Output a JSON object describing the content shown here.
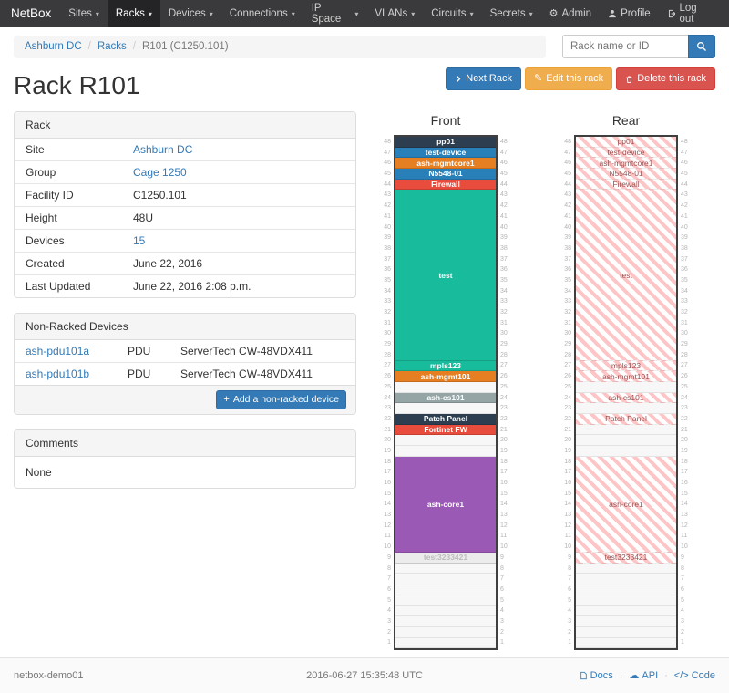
{
  "navbar": {
    "brand": "NetBox",
    "items": [
      {
        "label": "Sites",
        "active": false
      },
      {
        "label": "Racks",
        "active": true
      },
      {
        "label": "Devices",
        "active": false
      },
      {
        "label": "Connections",
        "active": false
      },
      {
        "label": "IP Space",
        "active": false
      },
      {
        "label": "VLANs",
        "active": false
      },
      {
        "label": "Circuits",
        "active": false
      },
      {
        "label": "Secrets",
        "active": false
      }
    ],
    "right": [
      {
        "label": "Admin",
        "icon": "gear-icon"
      },
      {
        "label": "Profile",
        "icon": "user-icon"
      },
      {
        "label": "Log out",
        "icon": "logout-icon"
      }
    ]
  },
  "breadcrumb": {
    "items": [
      "Ashburn DC",
      "Racks",
      "R101 (C1250.101)"
    ]
  },
  "search": {
    "placeholder": "Rack name or ID"
  },
  "page_title": "Rack R101",
  "actions": [
    {
      "label": "Next Rack",
      "icon": "chevron-right-icon",
      "style": "primary"
    },
    {
      "label": "Edit this rack",
      "icon": "pencil-icon",
      "style": "warning"
    },
    {
      "label": "Delete this rack",
      "icon": "trash-icon",
      "style": "danger"
    }
  ],
  "rack_panel": {
    "title": "Rack",
    "rows": [
      {
        "label": "Site",
        "value": "Ashburn DC",
        "link": true
      },
      {
        "label": "Group",
        "value": "Cage 1250",
        "link": true
      },
      {
        "label": "Facility ID",
        "value": "C1250.101",
        "link": false
      },
      {
        "label": "Height",
        "value": "48U",
        "link": false
      },
      {
        "label": "Devices",
        "value": "15",
        "link": true
      },
      {
        "label": "Created",
        "value": "June 22, 2016",
        "link": false
      },
      {
        "label": "Last Updated",
        "value": "June 22, 2016 2:08 p.m.",
        "link": false
      }
    ]
  },
  "non_racked": {
    "title": "Non-Racked Devices",
    "rows": [
      {
        "name": "ash-pdu101a",
        "type": "PDU",
        "model": "ServerTech CW-48VDX411"
      },
      {
        "name": "ash-pdu101b",
        "type": "PDU",
        "model": "ServerTech CW-48VDX411"
      }
    ],
    "add_button": "Add a non-racked device"
  },
  "comments": {
    "title": "Comments",
    "body": "None"
  },
  "elevations": {
    "front_label": "Front",
    "rear_label": "Rear",
    "top_unit": 48,
    "bottom_unit": 1,
    "front_units": [
      {
        "name": "pp01",
        "height_u": 1,
        "bg": "#2c3e50",
        "fg": "#ffffff"
      },
      {
        "name": "test-device",
        "height_u": 1,
        "bg": "#2980b9",
        "fg": "#ffffff"
      },
      {
        "name": "ash-mgmtcore1",
        "height_u": 1,
        "bg": "#e67e22",
        "fg": "#ffffff"
      },
      {
        "name": "N5548-01",
        "height_u": 1,
        "bg": "#2980b9",
        "fg": "#ffffff"
      },
      {
        "name": "Firewall",
        "height_u": 1,
        "bg": "#e74c3c",
        "fg": "#ffffff"
      },
      {
        "name": "test",
        "height_u": 16,
        "bg": "#18bc9c",
        "fg": "#ffffff"
      },
      {
        "name": "mpls123",
        "height_u": 1,
        "bg": "#18bc9c",
        "fg": "#ffffff"
      },
      {
        "name": "ash-mgmt101",
        "height_u": 1,
        "bg": "#e67e22",
        "fg": "#ffffff"
      },
      {
        "name": "",
        "height_u": 1
      },
      {
        "name": "ash-cs101",
        "height_u": 1,
        "bg": "#95a5a6",
        "fg": "#ffffff"
      },
      {
        "name": "",
        "height_u": 1
      },
      {
        "name": "Patch Panel",
        "height_u": 1,
        "bg": "#2c3e50",
        "fg": "#ffffff"
      },
      {
        "name": "Fortinet FW",
        "height_u": 1,
        "bg": "#e74c3c",
        "fg": "#ffffff"
      },
      {
        "name": "",
        "height_u": 1
      },
      {
        "name": "",
        "height_u": 1
      },
      {
        "name": "ash-core1",
        "height_u": 9,
        "bg": "#9b59b6",
        "fg": "#ffffff"
      },
      {
        "name": "test3233421",
        "height_u": 1,
        "bg": "#ececec",
        "fg": "#bdbdbd"
      },
      {
        "name": "",
        "height_u": 1
      },
      {
        "name": "",
        "height_u": 1
      },
      {
        "name": "",
        "height_u": 1
      },
      {
        "name": "",
        "height_u": 1
      },
      {
        "name": "",
        "height_u": 1
      },
      {
        "name": "",
        "height_u": 1
      },
      {
        "name": "",
        "height_u": 1
      },
      {
        "name": "",
        "height_u": 1
      }
    ],
    "rear_units": [
      {
        "name": "pp01",
        "height_u": 1
      },
      {
        "name": "test-device",
        "height_u": 1
      },
      {
        "name": "ash-mgmtcore1",
        "height_u": 1
      },
      {
        "name": "N5548-01",
        "height_u": 1
      },
      {
        "name": "Firewall",
        "height_u": 1
      },
      {
        "name": "test",
        "height_u": 16
      },
      {
        "name": "mpls123",
        "height_u": 1
      },
      {
        "name": "ash-mgmt101",
        "height_u": 1
      },
      {
        "name": "",
        "height_u": 1
      },
      {
        "name": "ash-cs101",
        "height_u": 1
      },
      {
        "name": "",
        "height_u": 1
      },
      {
        "name": "Patch Panel",
        "height_u": 1
      },
      {
        "name": "",
        "height_u": 1
      },
      {
        "name": "",
        "height_u": 1
      },
      {
        "name": "",
        "height_u": 1
      },
      {
        "name": "ash-core1",
        "height_u": 9
      },
      {
        "name": "test3233421",
        "height_u": 1
      },
      {
        "name": "",
        "height_u": 1
      },
      {
        "name": "",
        "height_u": 1
      },
      {
        "name": "",
        "height_u": 1
      },
      {
        "name": "",
        "height_u": 1
      },
      {
        "name": "",
        "height_u": 1
      },
      {
        "name": "",
        "height_u": 1
      },
      {
        "name": "",
        "height_u": 1
      },
      {
        "name": "",
        "height_u": 1
      }
    ]
  },
  "footer": {
    "host": "netbox-demo01",
    "timestamp": "2016-06-27 15:35:48 UTC",
    "links": [
      {
        "label": "Docs",
        "icon": "docs-icon"
      },
      {
        "label": "API",
        "icon": "cloud-icon"
      },
      {
        "label": "Code",
        "icon": "code-icon"
      }
    ]
  }
}
